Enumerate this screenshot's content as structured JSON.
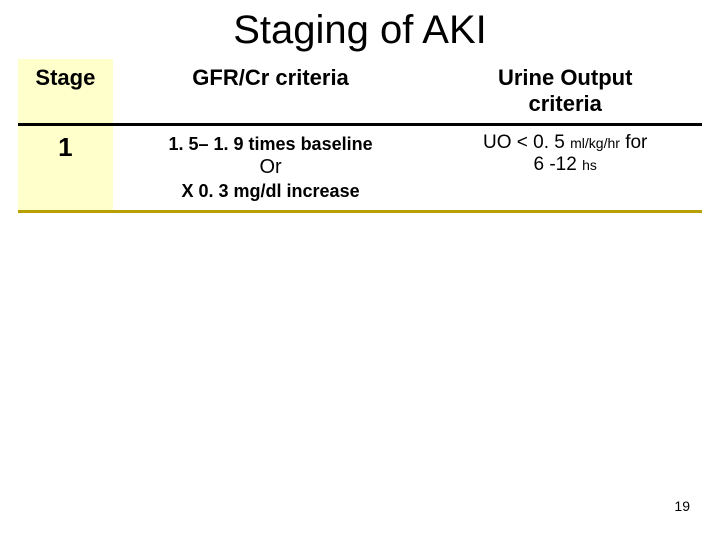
{
  "title": "Staging of AKI",
  "colors": {
    "stage_bg": "#ffffcc",
    "stage_border": "#b8a000",
    "gfr_header_border": "#b8a000",
    "urine_border": "#4a6fa8",
    "row_border": "#b8a000"
  },
  "table": {
    "columns": {
      "stage": "Stage",
      "gfr": "GFR/Cr criteria",
      "urine_l1": "Urine Output",
      "urine_l2": "criteria"
    },
    "rows": [
      {
        "stage": "1",
        "gfr_l1": "1. 5– 1. 9 times baseline",
        "gfr_or": "Or",
        "gfr_l2": "X 0. 3 mg/dl  increase",
        "urine_pre": "UO < 0. 5 ",
        "urine_unit": "ml/kg/hr",
        "urine_post": " for",
        "urine_l2a": "6 -12 ",
        "urine_l2b": "hs"
      }
    ]
  },
  "page_number": "19"
}
